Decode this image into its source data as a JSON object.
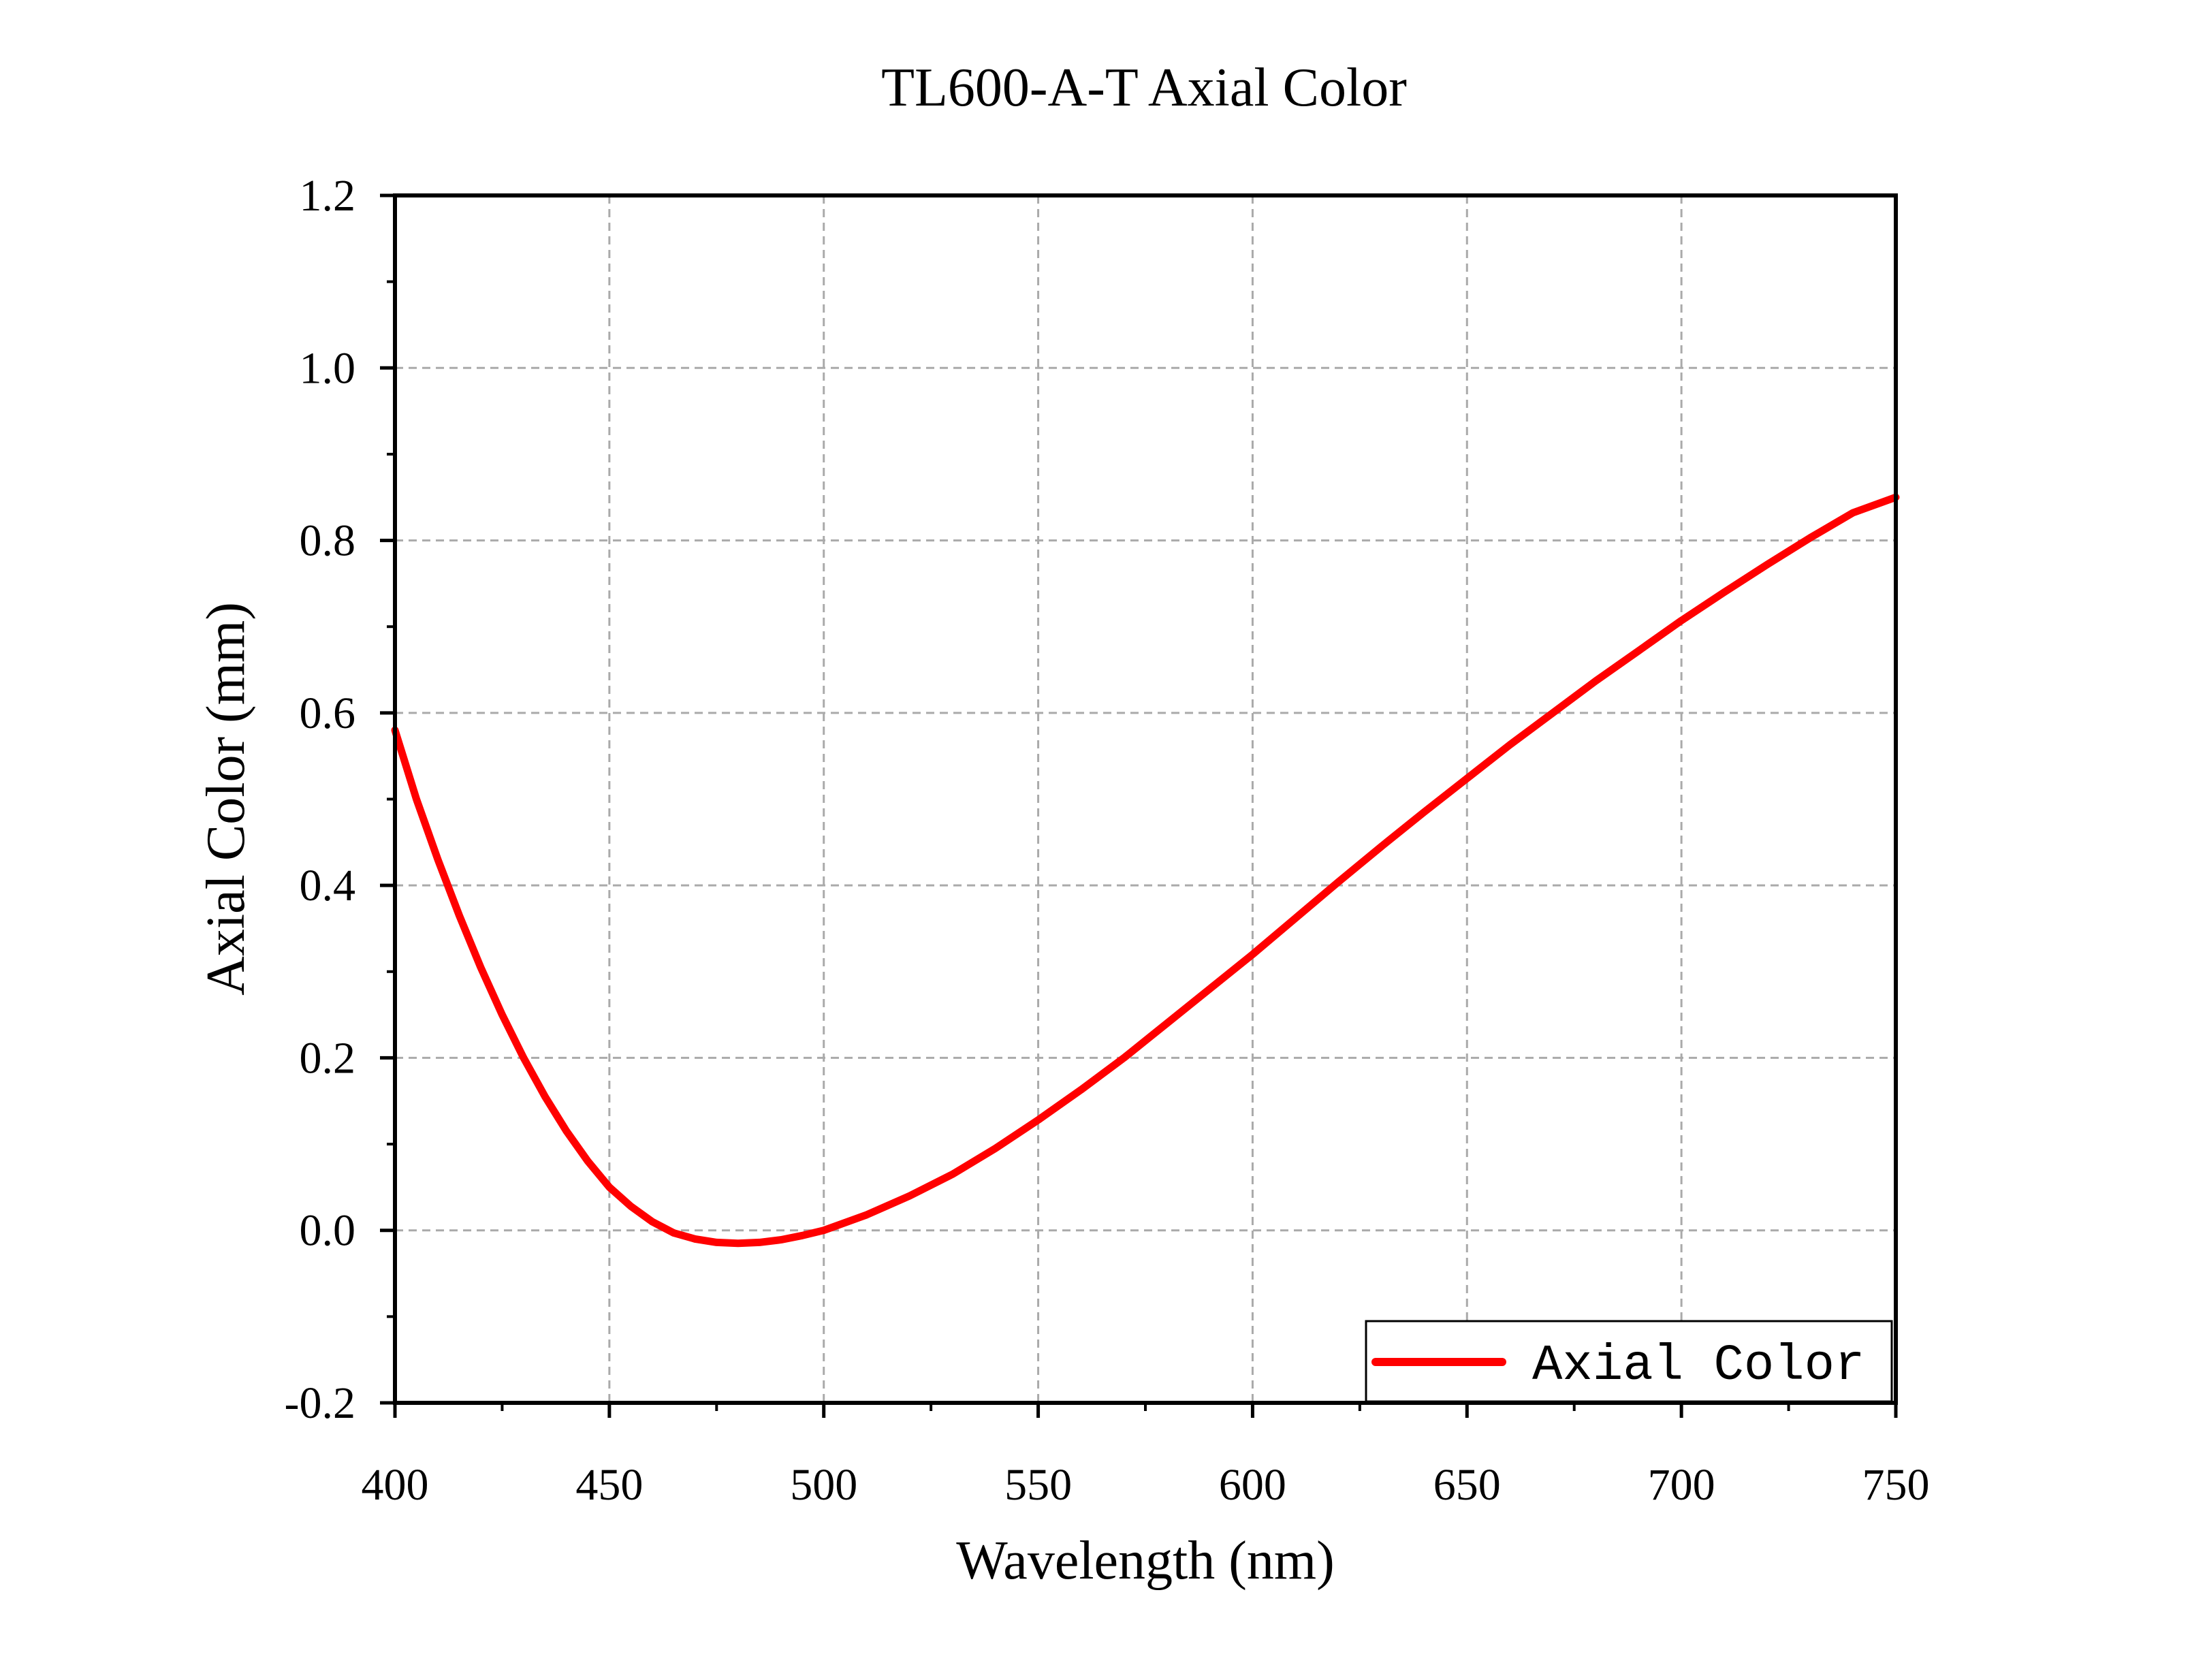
{
  "chart_data": {
    "type": "line",
    "title": "TL600-A-T Axial Color",
    "xlabel": "Wavelength (nm)",
    "ylabel": "Axial Color (mm)",
    "xlim": [
      400,
      750
    ],
    "ylim": [
      -0.2,
      1.2
    ],
    "x_ticks": [
      "400",
      "450",
      "500",
      "550",
      "600",
      "650",
      "700",
      "750"
    ],
    "y_ticks": [
      "-0.2",
      "0.0",
      "0.2",
      "0.4",
      "0.6",
      "0.8",
      "1.0",
      "1.2"
    ],
    "grid": true,
    "legend_position": "bottom-right",
    "series": [
      {
        "name": "Axial Color",
        "color": "#ff0000",
        "x": [
          400,
          405,
          410,
          415,
          420,
          425,
          430,
          435,
          440,
          445,
          450,
          455,
          460,
          465,
          470,
          475,
          480,
          485,
          490,
          495,
          500,
          510,
          520,
          530,
          540,
          550,
          560,
          570,
          580,
          590,
          600,
          610,
          620,
          630,
          640,
          650,
          660,
          670,
          680,
          690,
          700,
          710,
          720,
          730,
          740,
          750
        ],
        "y": [
          0.58,
          0.5,
          0.43,
          0.365,
          0.305,
          0.25,
          0.2,
          0.155,
          0.115,
          0.08,
          0.05,
          0.028,
          0.01,
          -0.003,
          -0.01,
          -0.014,
          -0.015,
          -0.014,
          -0.011,
          -0.006,
          0.0,
          0.018,
          0.04,
          0.065,
          0.095,
          0.128,
          0.163,
          0.2,
          0.24,
          0.28,
          0.32,
          0.362,
          0.404,
          0.445,
          0.485,
          0.524,
          0.563,
          0.6,
          0.637,
          0.672,
          0.707,
          0.74,
          0.772,
          0.803,
          0.832,
          0.85
        ]
      }
    ]
  }
}
